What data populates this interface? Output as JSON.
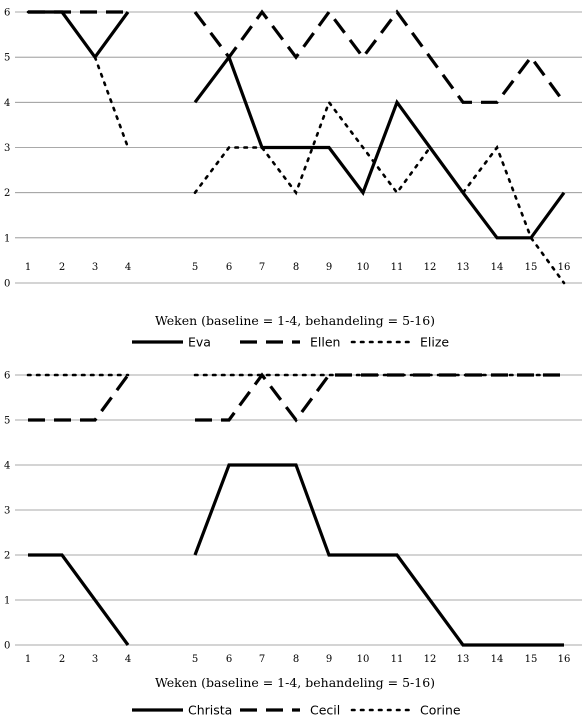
{
  "chart_data": [
    {
      "type": "line",
      "title": "",
      "xlabel": "Weken (baseline = 1-4, behandeling = 5-16)",
      "ylabel": "",
      "ylim": [
        0,
        6
      ],
      "yticks": [
        "0",
        "1",
        "2",
        "3",
        "4",
        "5",
        "6"
      ],
      "x": [
        1,
        2,
        3,
        4,
        5,
        6,
        7,
        8,
        9,
        10,
        11,
        12,
        13,
        14,
        15,
        16
      ],
      "xticks": [
        "1",
        "2",
        "3",
        "4",
        "5",
        "6",
        "7",
        "8",
        "9",
        "10",
        "11",
        "12",
        "13",
        "14",
        "15",
        "16"
      ],
      "phase_break_after_week": 4,
      "grid": true,
      "legend_position": "bottom",
      "series": [
        {
          "name": "Eva",
          "style": "solid",
          "values": [
            6,
            6,
            5,
            6,
            4,
            5,
            3,
            3,
            3,
            2,
            4,
            3,
            2,
            1,
            1,
            2
          ]
        },
        {
          "name": "Ellen",
          "style": "dashed",
          "values": [
            6,
            6,
            6,
            6,
            6,
            5,
            6,
            5,
            6,
            5,
            6,
            5,
            4,
            4,
            5,
            4
          ]
        },
        {
          "name": "Elize",
          "style": "dotted",
          "values": [
            6,
            6,
            5,
            3,
            2,
            3,
            3,
            2,
            4,
            3,
            2,
            3,
            2,
            3,
            1,
            0
          ]
        }
      ]
    },
    {
      "type": "line",
      "title": "",
      "xlabel": "Weken (baseline = 1-4, behandeling = 5-16)",
      "ylabel": "",
      "ylim": [
        0,
        6
      ],
      "yticks": [
        "0",
        "1",
        "2",
        "3",
        "4",
        "5",
        "6"
      ],
      "x": [
        1,
        2,
        3,
        4,
        5,
        6,
        7,
        8,
        9,
        10,
        11,
        12,
        13,
        14,
        15,
        16
      ],
      "xticks": [
        "1",
        "2",
        "3",
        "4",
        "5",
        "6",
        "7",
        "8",
        "9",
        "10",
        "11",
        "12",
        "13",
        "14",
        "15",
        "16"
      ],
      "phase_break_after_week": 4,
      "grid": true,
      "legend_position": "bottom",
      "series": [
        {
          "name": "Christa",
          "style": "solid",
          "values": [
            2,
            2,
            1,
            0,
            2,
            4,
            4,
            4,
            2,
            2,
            2,
            1,
            0,
            0,
            0,
            0
          ]
        },
        {
          "name": "Cecil",
          "style": "dashed",
          "values": [
            5,
            5,
            5,
            6,
            5,
            5,
            6,
            5,
            6,
            6,
            6,
            6,
            6,
            6,
            6,
            6
          ]
        },
        {
          "name": "Corine",
          "style": "dotted",
          "values": [
            6,
            6,
            6,
            6,
            6,
            6,
            6,
            6,
            6,
            6,
            6,
            6,
            6,
            6,
            6,
            6
          ]
        }
      ]
    }
  ]
}
